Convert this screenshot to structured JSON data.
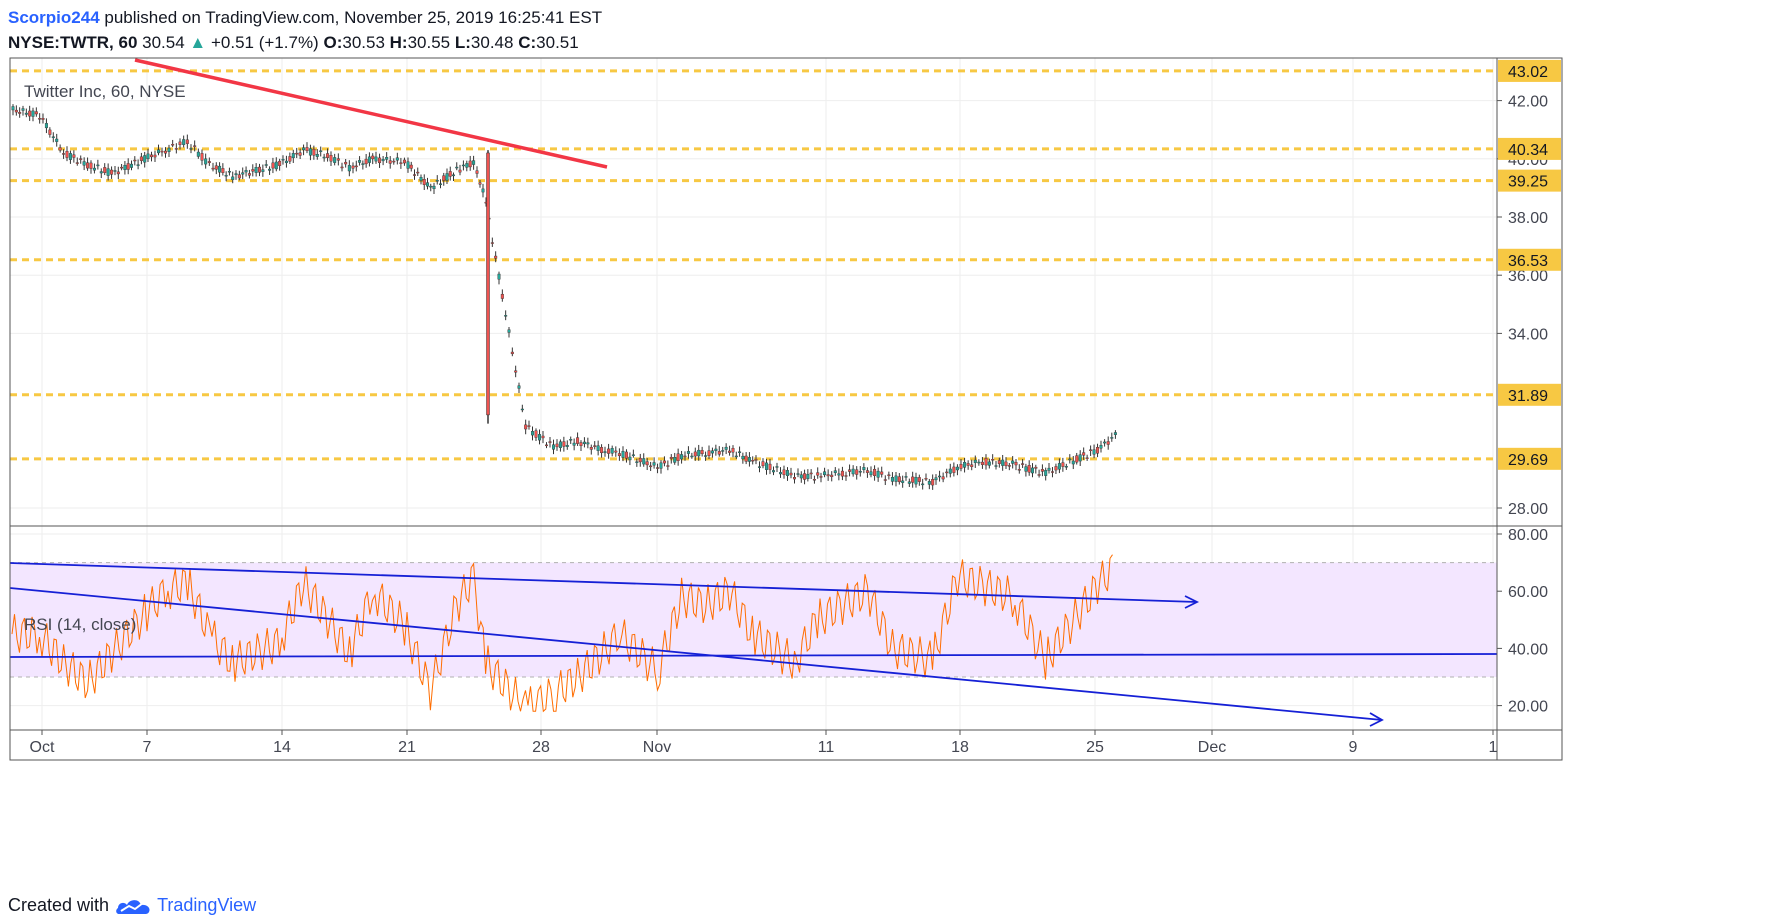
{
  "header": {
    "author": "Scorpio244",
    "published_text": "published on TradingView.com, November 25, 2019 16:25:41 EST",
    "symbol_interval": "NYSE:TWTR, 60",
    "last_price": "30.54",
    "change": "+0.51 (+1.7%)",
    "o_label": "O:",
    "o_value": "30.53",
    "h_label": "H:",
    "h_value": "30.55",
    "l_label": "L:",
    "l_value": "30.48",
    "c_label": "C:",
    "c_value": "30.51"
  },
  "footer": {
    "created_with": "Created with",
    "brand": "TradingView"
  },
  "colors": {
    "candle_up": "#26a69a",
    "candle_down": "#ef5350",
    "level_line": "#f7c843",
    "trend_red": "#f23645",
    "rsi_line": "#ff6d00",
    "rsi_band": "#f3e6ff",
    "rsi_trend": "#1520d6",
    "grid": "#eeeeee"
  },
  "chart_data": [
    {
      "type": "candlestick",
      "title": "Twitter Inc, 60, NYSE",
      "x_ticks": [
        "Oct",
        "7",
        "14",
        "21",
        "28",
        "Nov",
        "11",
        "18",
        "25",
        "Dec",
        "9",
        "1"
      ],
      "y_ticks": [
        "42.00",
        "40.00",
        "38.00",
        "36.00",
        "34.00",
        "28.00"
      ],
      "ylim": [
        27.5,
        43.5
      ],
      "grid": true,
      "horizontal_levels": [
        "43.02",
        "40.34",
        "39.25",
        "36.53",
        "31.89",
        "29.69"
      ],
      "series": [
        {
          "name": "",
          "x": [
            "Sep 30",
            "Oct 1",
            "Oct 2",
            "Oct 3",
            "Oct 4",
            "Oct 7",
            "Oct 8",
            "Oct 9",
            "Oct 10",
            "Oct 11",
            "Oct 14",
            "Oct 15",
            "Oct 16",
            "Oct 17",
            "Oct 18",
            "Oct 21",
            "Oct 22",
            "Oct 23",
            "Oct 24",
            "Oct 25",
            "Oct 28",
            "Oct 29",
            "Oct 30",
            "Oct 31",
            "Nov 1",
            "Nov 4",
            "Nov 5",
            "Nov 6",
            "Nov 7",
            "Nov 8",
            "Nov 11",
            "Nov 12",
            "Nov 13",
            "Nov 14",
            "Nov 15",
            "Nov 18",
            "Nov 19",
            "Nov 20",
            "Nov 21",
            "Nov 22",
            "Nov 25"
          ],
          "close": [
            41.5,
            40.2,
            39.8,
            39.5,
            40.0,
            40.3,
            40.6,
            39.8,
            39.4,
            39.8,
            40.3,
            40.1,
            39.7,
            40.0,
            39.9,
            39.0,
            39.6,
            39.9,
            38.5,
            30.8,
            30.1,
            30.3,
            30.0,
            29.9,
            29.4,
            29.8,
            29.9,
            30.0,
            29.6,
            29.1,
            29.1,
            29.2,
            29.3,
            29.0,
            28.9,
            29.4,
            29.6,
            29.5,
            29.2,
            30.0,
            30.5
          ]
        }
      ],
      "trendline_label": ""
    },
    {
      "type": "line",
      "title": "RSI (14, close)",
      "y_ticks": [
        "80.00",
        "60.00",
        "40.00",
        "20.00"
      ],
      "ylim": [
        13,
        82
      ],
      "band": [
        30,
        70
      ],
      "series": [
        {
          "name": "",
          "x": [
            "Sep 30",
            "Oct 1",
            "Oct 2",
            "Oct 3",
            "Oct 4",
            "Oct 7",
            "Oct 8",
            "Oct 9",
            "Oct 10",
            "Oct 11",
            "Oct 14",
            "Oct 15",
            "Oct 16",
            "Oct 17",
            "Oct 18",
            "Oct 21",
            "Oct 22",
            "Oct 23",
            "Oct 24",
            "Oct 25",
            "Oct 28",
            "Oct 29",
            "Oct 30",
            "Oct 31",
            "Nov 1",
            "Nov 4",
            "Nov 5",
            "Nov 6",
            "Nov 7",
            "Nov 8",
            "Nov 11",
            "Nov 12",
            "Nov 13",
            "Nov 14",
            "Nov 15",
            "Nov 18",
            "Nov 19",
            "Nov 20",
            "Nov 21",
            "Nov 22",
            "Nov 25"
          ],
          "values": [
            45,
            35,
            28,
            38,
            52,
            60,
            63,
            45,
            35,
            42,
            63,
            50,
            38,
            60,
            48,
            25,
            55,
            65,
            35,
            19,
            24,
            30,
            38,
            45,
            32,
            58,
            55,
            60,
            45,
            35,
            50,
            55,
            60,
            40,
            36,
            65,
            62,
            58,
            36,
            62,
            68
          ]
        }
      ]
    }
  ]
}
